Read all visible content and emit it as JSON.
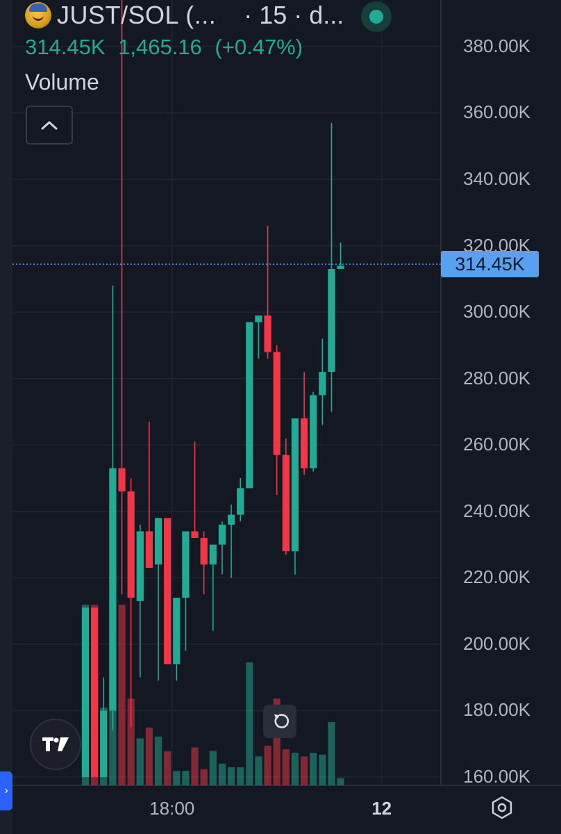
{
  "header": {
    "symbol": "JUST/SOL (...",
    "interval": "· 15 · d...",
    "coin_icon": "just-coin-logo-icon",
    "status_color": "#22ab94"
  },
  "ohlc": {
    "last": "314.45K",
    "change": "1,465.16",
    "change_pct": "(+0.47%)"
  },
  "indicator": {
    "volume_label": "Volume"
  },
  "price_tag": "314.45K",
  "colors": {
    "up": "#22ab94",
    "down": "#f23645",
    "crosshair": "#5aa0f0",
    "background": "#141823",
    "grid": "#222631"
  },
  "chart_data": {
    "type": "candlestick",
    "y_tick_labels": [
      "380.00K",
      "360.00K",
      "340.00K",
      "320.00K",
      "300.00K",
      "280.00K",
      "260.00K",
      "240.00K",
      "220.00K",
      "200.00K",
      "180.00K",
      "160.00K"
    ],
    "y_ticks": [
      380,
      360,
      340,
      320,
      300,
      280,
      260,
      240,
      220,
      200,
      180,
      160
    ],
    "ylim": [
      157.5,
      394
    ],
    "unit": "K",
    "x_tick_labels": [
      "18:00",
      "12"
    ],
    "x_ticks": [
      17.5,
      40.5
    ],
    "xlim": [
      0,
      47
    ],
    "last_price": 314.45,
    "grid": true,
    "candles": [
      {
        "i": 8,
        "o": 160,
        "h": 211,
        "l": 160,
        "c": 211
      },
      {
        "i": 9,
        "o": 211,
        "h": 211,
        "l": 160,
        "c": 160
      },
      {
        "i": 10,
        "o": 160,
        "h": 190,
        "l": 160,
        "c": 180
      },
      {
        "i": 11,
        "o": 180,
        "h": 308,
        "l": 174,
        "c": 253
      },
      {
        "i": 12,
        "o": 253,
        "h": 394,
        "l": 215,
        "c": 246
      },
      {
        "i": 13,
        "o": 246,
        "h": 250,
        "l": 175,
        "c": 214
      },
      {
        "i": 14,
        "o": 213,
        "h": 236,
        "l": 190,
        "c": 234
      },
      {
        "i": 15,
        "o": 234,
        "h": 267,
        "l": 224,
        "c": 223
      },
      {
        "i": 16,
        "o": 224,
        "h": 238,
        "l": 189,
        "c": 238
      },
      {
        "i": 17,
        "o": 238,
        "h": 238,
        "l": 194,
        "c": 194
      },
      {
        "i": 18,
        "o": 194,
        "h": 213,
        "l": 189,
        "c": 214
      },
      {
        "i": 19,
        "o": 214,
        "h": 234,
        "l": 198,
        "c": 234
      },
      {
        "i": 20,
        "o": 234,
        "h": 261,
        "l": 232,
        "c": 232
      },
      {
        "i": 21,
        "o": 232,
        "h": 234,
        "l": 215,
        "c": 224
      },
      {
        "i": 22,
        "o": 224,
        "h": 230,
        "l": 204,
        "c": 230
      },
      {
        "i": 23,
        "o": 230,
        "h": 237,
        "l": 221,
        "c": 236
      },
      {
        "i": 24,
        "o": 236,
        "h": 242,
        "l": 220,
        "c": 239
      },
      {
        "i": 25,
        "o": 239,
        "h": 250,
        "l": 237,
        "c": 247
      },
      {
        "i": 26,
        "o": 247,
        "h": 297,
        "l": 247,
        "c": 297
      },
      {
        "i": 27,
        "o": 297,
        "h": 299,
        "l": 286,
        "c": 299
      },
      {
        "i": 28,
        "o": 299,
        "h": 326,
        "l": 286,
        "c": 288
      },
      {
        "i": 29,
        "o": 288,
        "h": 290,
        "l": 245,
        "c": 257
      },
      {
        "i": 30,
        "o": 257,
        "h": 262,
        "l": 227,
        "c": 228
      },
      {
        "i": 31,
        "o": 228,
        "h": 268,
        "l": 221,
        "c": 268
      },
      {
        "i": 32,
        "o": 268,
        "h": 282,
        "l": 251,
        "c": 253
      },
      {
        "i": 33,
        "o": 253,
        "h": 276,
        "l": 252,
        "c": 275
      },
      {
        "i": 34,
        "o": 275,
        "h": 292,
        "l": 266,
        "c": 282
      },
      {
        "i": 35,
        "o": 282,
        "h": 357,
        "l": 270,
        "c": 313
      },
      {
        "i": 36,
        "o": 313,
        "h": 321,
        "l": 313,
        "c": 314
      }
    ],
    "volume": {
      "ylim": [
        0,
        100
      ],
      "bars": [
        {
          "i": 8,
          "v": 100,
          "dir": "up"
        },
        {
          "i": 9,
          "v": 100,
          "dir": "down"
        },
        {
          "i": 10,
          "v": 43,
          "dir": "up"
        },
        {
          "i": 11,
          "v": 100,
          "dir": "up"
        },
        {
          "i": 12,
          "v": 100,
          "dir": "down"
        },
        {
          "i": 13,
          "v": 48,
          "dir": "down"
        },
        {
          "i": 14,
          "v": 26,
          "dir": "up"
        },
        {
          "i": 15,
          "v": 32,
          "dir": "down"
        },
        {
          "i": 16,
          "v": 27,
          "dir": "up"
        },
        {
          "i": 17,
          "v": 19,
          "dir": "down"
        },
        {
          "i": 18,
          "v": 8,
          "dir": "up"
        },
        {
          "i": 19,
          "v": 8,
          "dir": "up"
        },
        {
          "i": 20,
          "v": 21,
          "dir": "down"
        },
        {
          "i": 21,
          "v": 9,
          "dir": "down"
        },
        {
          "i": 22,
          "v": 19,
          "dir": "up"
        },
        {
          "i": 23,
          "v": 12,
          "dir": "up"
        },
        {
          "i": 24,
          "v": 10,
          "dir": "up"
        },
        {
          "i": 25,
          "v": 10,
          "dir": "up"
        },
        {
          "i": 26,
          "v": 68,
          "dir": "up"
        },
        {
          "i": 27,
          "v": 16,
          "dir": "up"
        },
        {
          "i": 28,
          "v": 22,
          "dir": "down"
        },
        {
          "i": 29,
          "v": 48,
          "dir": "down"
        },
        {
          "i": 30,
          "v": 20,
          "dir": "down"
        },
        {
          "i": 31,
          "v": 18,
          "dir": "up"
        },
        {
          "i": 32,
          "v": 16,
          "dir": "down"
        },
        {
          "i": 33,
          "v": 18,
          "dir": "up"
        },
        {
          "i": 34,
          "v": 17,
          "dir": "up"
        },
        {
          "i": 35,
          "v": 35,
          "dir": "up"
        },
        {
          "i": 36,
          "v": 4,
          "dir": "up"
        }
      ]
    }
  }
}
